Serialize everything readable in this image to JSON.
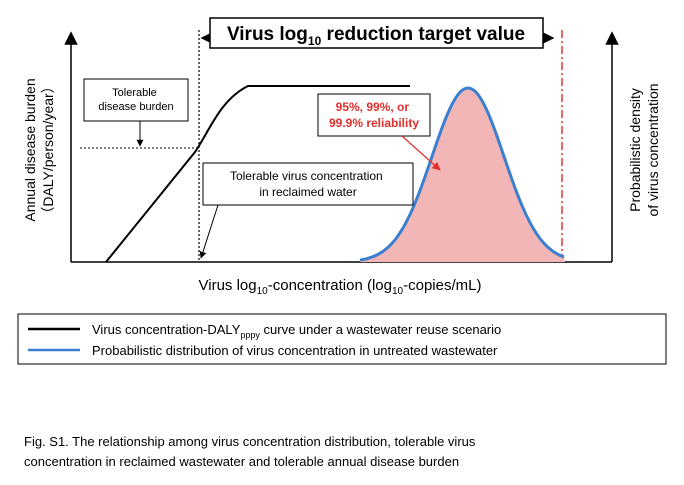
{
  "figure": {
    "target_label": "Virus log",
    "target_sub": "10",
    "target_label_end": " reduction target value",
    "y_left_line1": "Annual disease burden",
    "y_left_line2": "（DALY/person/year）",
    "y_right_line1": "Probabilistic density",
    "y_right_line2": "of virus concentration",
    "x_label_a": "Virus log",
    "x_sub1": "10",
    "x_label_b": "-concentration (log",
    "x_sub2": "10",
    "x_label_c": "-copies/mL)",
    "tolerable_burden_line1": "Tolerable",
    "tolerable_burden_line2": "disease burden",
    "tolerable_conc_line1": "Tolerable virus concentration",
    "tolerable_conc_line2": "in reclaimed water",
    "reliability_line1": "95%, 99%, or",
    "reliability_line2": "99.9% reliability"
  },
  "legend": {
    "item1_a": "Virus concentration-DALY",
    "item1_sub": "pppy",
    "item1_b": " curve under a wastewater reuse scenario",
    "item2": "Probabilistic distribution of virus concentration in untreated wastewater",
    "item1_color": "#000000",
    "item2_color": "#3a7fd0"
  },
  "caption": {
    "line1": "Fig. S1. The relationship among virus concentration distribution, tolerable virus",
    "line2": "concentration in reclaimed wastewater and tolerable annual disease burden"
  },
  "colors": {
    "reliability_text": "#e0302e",
    "fill": "#f2b6b6",
    "dashdot": "#e0302e"
  }
}
